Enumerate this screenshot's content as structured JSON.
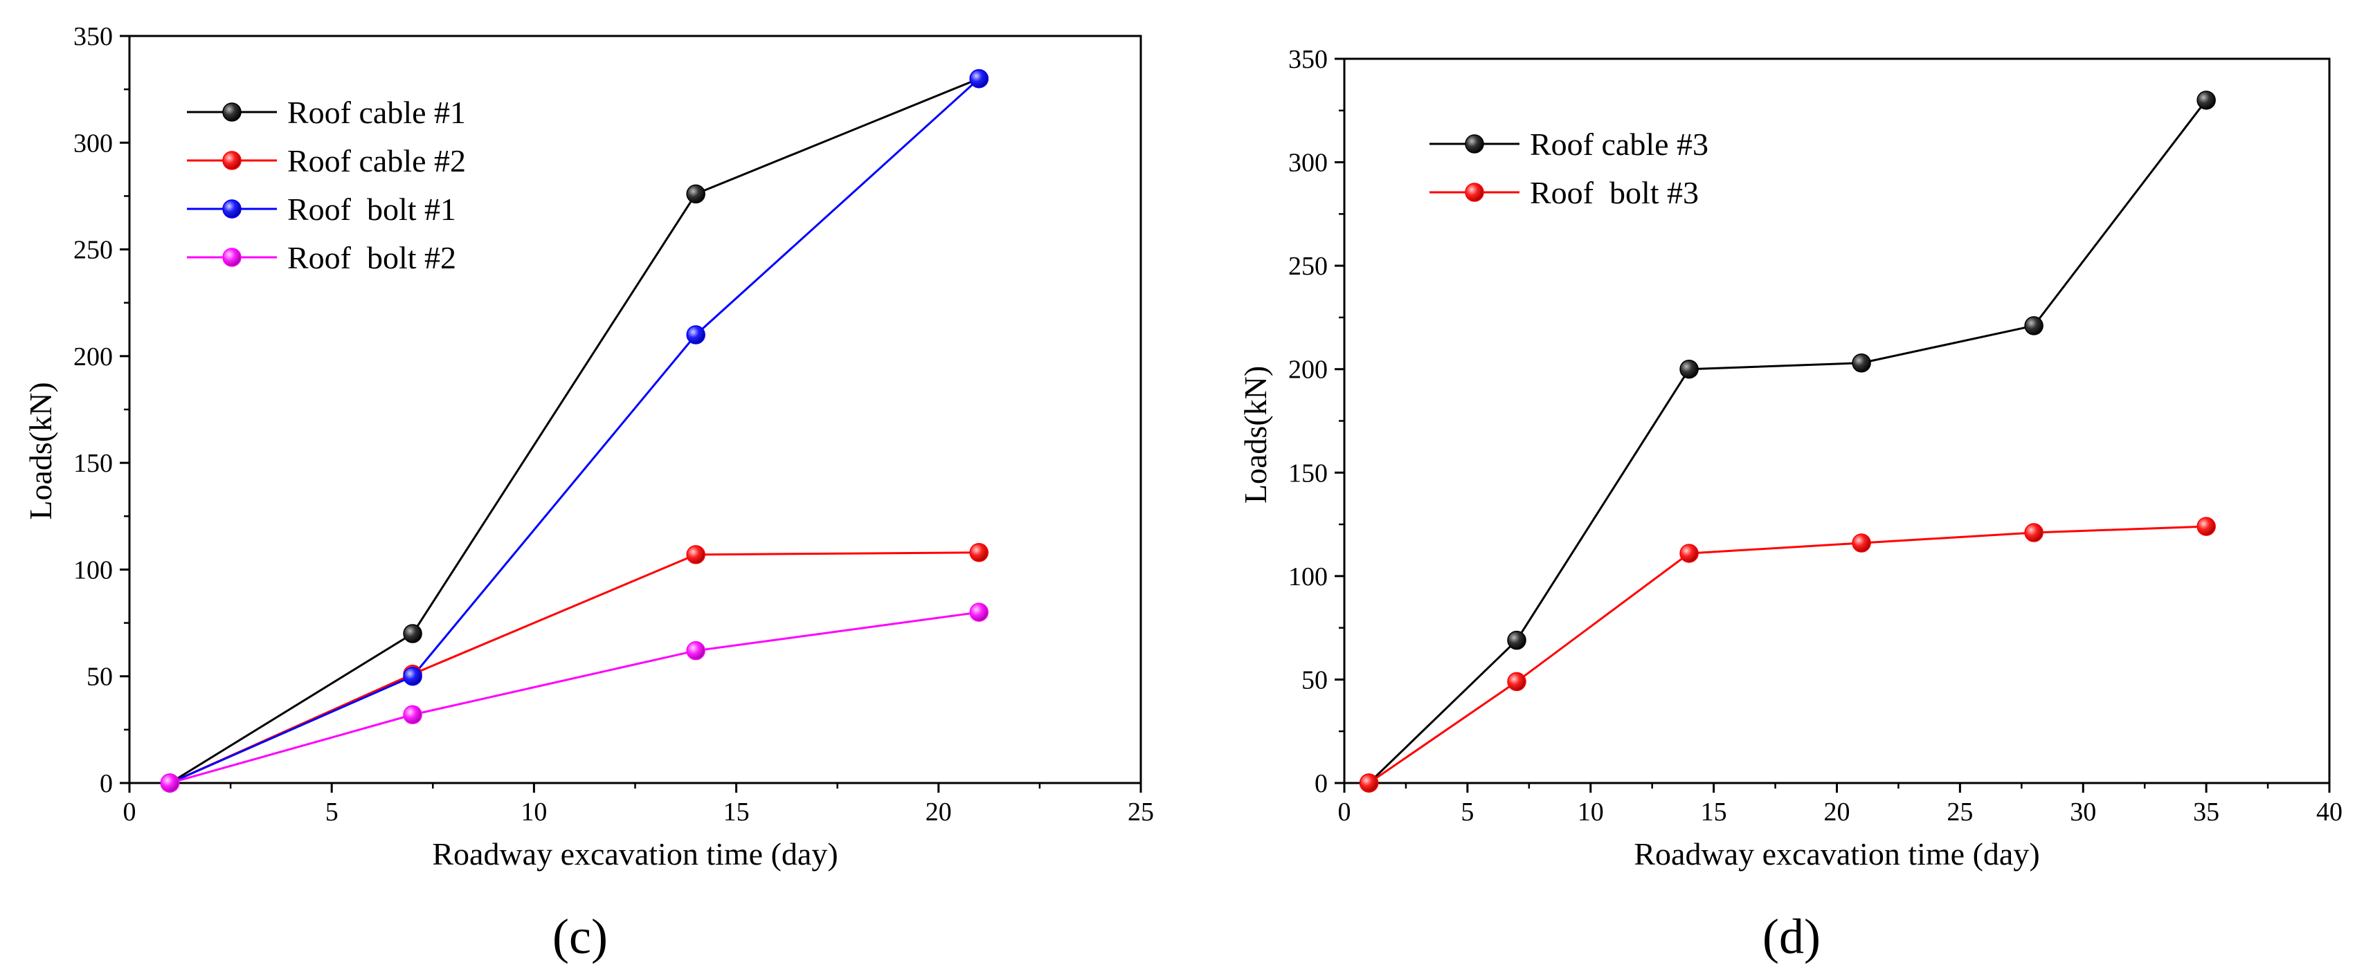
{
  "chart_data": [
    {
      "type": "line",
      "panel_label": "(c)",
      "panel_letter": "c",
      "xlabel": "Roadway excavation time (day)",
      "ylabel": "Loads(kN)",
      "xlim": [
        0,
        25
      ],
      "ylim": [
        0,
        350
      ],
      "xticks": [
        0,
        5,
        10,
        15,
        20,
        25
      ],
      "yticks": [
        0,
        50,
        100,
        150,
        200,
        250,
        300,
        350
      ],
      "legend_position": "top-left",
      "series": [
        {
          "name": "Roof cable #1",
          "color": "#000000",
          "x": [
            1,
            7,
            14,
            21
          ],
          "y": [
            0,
            70,
            276,
            330
          ]
        },
        {
          "name": "Roof cable #2",
          "color": "#ff0000",
          "x": [
            1,
            7,
            14,
            21
          ],
          "y": [
            0,
            51,
            107,
            108
          ]
        },
        {
          "name": "Roof  bolt #1",
          "color": "#0000ff",
          "x": [
            1,
            7,
            14,
            21
          ],
          "y": [
            0,
            50,
            210,
            330
          ]
        },
        {
          "name": "Roof  bolt #2",
          "color": "#ff00ff",
          "x": [
            1,
            7,
            14,
            21
          ],
          "y": [
            0,
            32,
            62,
            80
          ]
        }
      ]
    },
    {
      "type": "line",
      "panel_label": "(d)",
      "panel_letter": "d",
      "xlabel": "Roadway excavation time (day)",
      "ylabel": "Loads(kN)",
      "xlim": [
        0,
        40
      ],
      "ylim": [
        0,
        350
      ],
      "xticks": [
        0,
        5,
        10,
        15,
        20,
        25,
        30,
        35,
        40
      ],
      "yticks": [
        0,
        50,
        100,
        150,
        200,
        250,
        300,
        350
      ],
      "legend_position": "top-left",
      "series": [
        {
          "name": "Roof cable #3",
          "color": "#000000",
          "x": [
            1,
            7,
            14,
            21,
            28,
            35
          ],
          "y": [
            0,
            69,
            200,
            203,
            221,
            330
          ]
        },
        {
          "name": "Roof  bolt #3",
          "color": "#ff0000",
          "x": [
            1,
            7,
            14,
            21,
            28,
            35
          ],
          "y": [
            0,
            49,
            111,
            116,
            121,
            124
          ]
        }
      ]
    }
  ]
}
